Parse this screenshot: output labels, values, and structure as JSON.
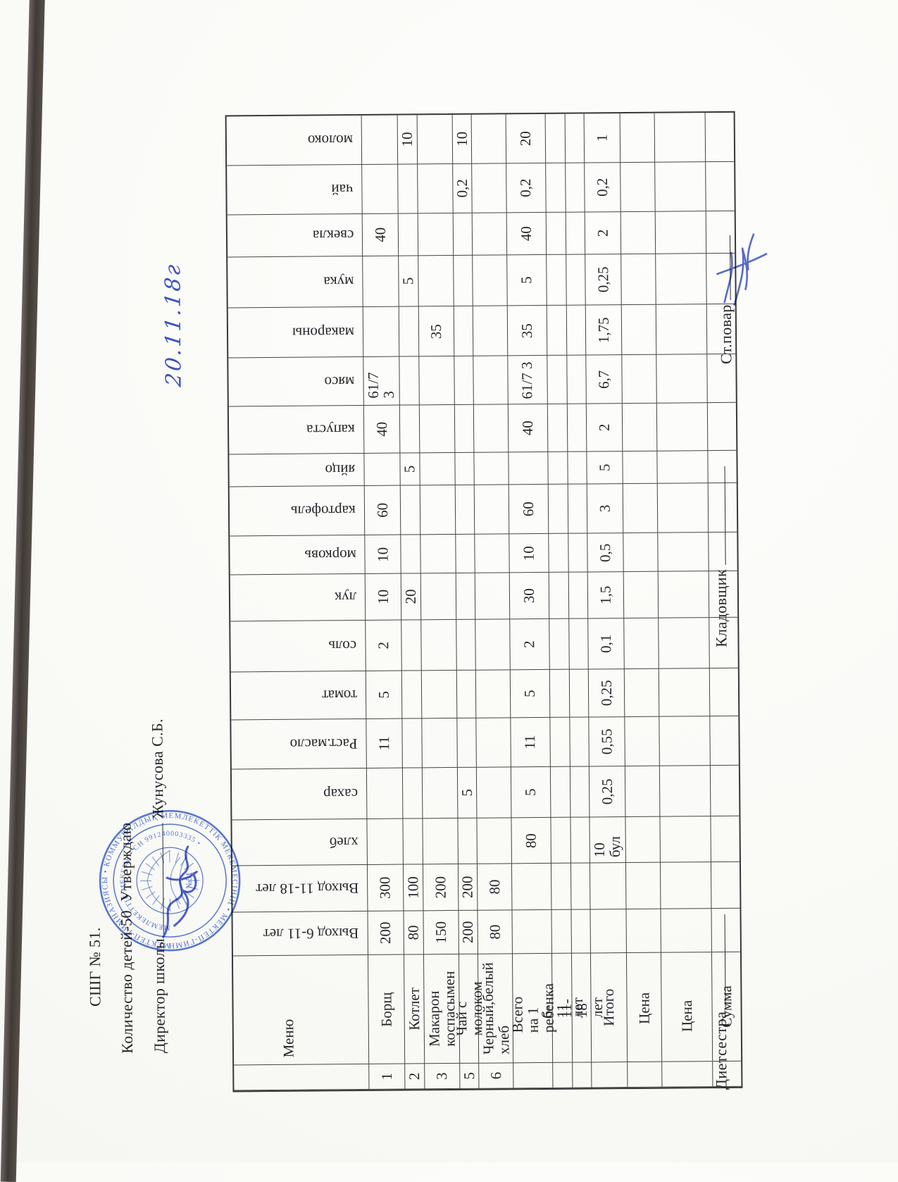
{
  "page": {
    "header": {
      "school": "СШГ № 51.",
      "count_line": "Количество детей-50",
      "approve": "Утверждаю",
      "director_label": "Директор школы",
      "director_name": "Жунусова С.Б.",
      "handwritten_date": "20.11.18г"
    },
    "table": {
      "corner_label": "Меню",
      "bands": [
        {
          "key": "moloko",
          "label": "молоко"
        },
        {
          "key": "chay",
          "label": "чай"
        },
        {
          "key": "svekla",
          "label": "свекла"
        },
        {
          "key": "muka",
          "label": "мука"
        },
        {
          "key": "makarony",
          "label": "макароны"
        },
        {
          "key": "myaso",
          "label": "мясо"
        },
        {
          "key": "kapusta",
          "label": "капуста"
        },
        {
          "key": "yaytso",
          "label": "яйцо"
        },
        {
          "key": "kartofel",
          "label": "картофель"
        },
        {
          "key": "morkov",
          "label": "морковь"
        },
        {
          "key": "luk",
          "label": "лук"
        },
        {
          "key": "sol",
          "label": "соль"
        },
        {
          "key": "tomat",
          "label": "томат"
        },
        {
          "key": "rast_maslo",
          "label": "Раст.масло"
        },
        {
          "key": "sakhar",
          "label": "сахар"
        },
        {
          "key": "khleb",
          "label": "хлеб"
        },
        {
          "key": "vykhod_11_18",
          "label": "Выход 11-18 лет"
        },
        {
          "key": "vykhod_6_11",
          "label": "Выход 6-11 лет"
        }
      ],
      "strips": [
        {
          "num": "1",
          "name": "Борщ",
          "cells": {
            "vykhod_6_11": "200",
            "vykhod_11_18": "300",
            "svekla": "40",
            "myaso": "61/7 3",
            "kapusta": "40",
            "kartofel": "60",
            "morkov": "10",
            "luk": "10",
            "sol": "2",
            "tomat": "5",
            "rast_maslo": "11"
          }
        },
        {
          "num": "2",
          "name": "Котлет",
          "cells": {
            "vykhod_6_11": "80",
            "vykhod_11_18": "100",
            "moloko": "10",
            "muka": "5",
            "yaytso": "5",
            "luk": "20"
          }
        },
        {
          "num": "3",
          "name": "Макарон коспасымен",
          "cells": {
            "vykhod_6_11": "150",
            "vykhod_11_18": "200",
            "makarony": "35"
          }
        },
        {
          "num": "5",
          "name": "Чай с молоком",
          "cells": {
            "vykhod_6_11": "200",
            "vykhod_11_18": "200",
            "moloko": "10",
            "chay": "0,2",
            "sakhar": "5"
          }
        },
        {
          "num": "6",
          "name": "Черный,белый хлеб",
          "cells": {
            "vykhod_6_11": "80",
            "vykhod_11_18": "80"
          }
        },
        {
          "num": "",
          "name": "Всего на 1 ребенка",
          "cells": {
            "moloko": "20",
            "chay": "0,2",
            "svekla": "40",
            "muka": "5",
            "makarony": "35",
            "myaso": "61/7 3",
            "kapusta": "40",
            "kartofel": "60",
            "morkov": "10",
            "luk": "30",
            "sol": "2",
            "tomat": "5",
            "rast_maslo": "11",
            "sakhar": "5",
            "khleb": "80"
          }
        },
        {
          "num": "",
          "name": "6-11 лет",
          "cells": {}
        },
        {
          "num": "",
          "name": "11-18 лет",
          "cells": {}
        },
        {
          "num": "",
          "name": "Итого",
          "cells": {
            "moloko": "1",
            "chay": "0,2",
            "svekla": "2",
            "muka": "0,25",
            "makarony": "1,75",
            "myaso": "6,7",
            "kapusta": "2",
            "yaytso": "5",
            "kartofel": "3",
            "morkov": "0,5",
            "luk": "1,5",
            "sol": "0,1",
            "tomat": "0,25",
            "rast_maslo": "0,55",
            "sakhar": "0,25",
            "khleb": "10 бул"
          }
        },
        {
          "num": "",
          "name": "Цена",
          "cells": {}
        },
        {
          "num": "",
          "name": "Цена",
          "cells": {}
        },
        {
          "num": "",
          "name": "Сумма",
          "cells": {}
        }
      ]
    },
    "signatures": {
      "dietitian": "Диетсестра",
      "storekeeper": "Кладовщик",
      "chef": "Ст.повар"
    },
    "stamp": {
      "ring_outer": "МЕКТЕП-ГИМНАЗИЯСЫ • КОММУНАЛДЫҚ МЕМЛЕКЕТТІК МЕКЕМЕСІНІҢ • МЕКТЕП-ГИМНАЗИЯСЫ •",
      "ring_inner": "МЕМЛЕКЕТТІК МЕКЕМЕ • СН 991240003335 •",
      "center": "№51"
    },
    "colors": {
      "ink": "#26262a",
      "stamp_blue": "#4a6cc8",
      "pen_blue": "#3c52bd"
    }
  }
}
